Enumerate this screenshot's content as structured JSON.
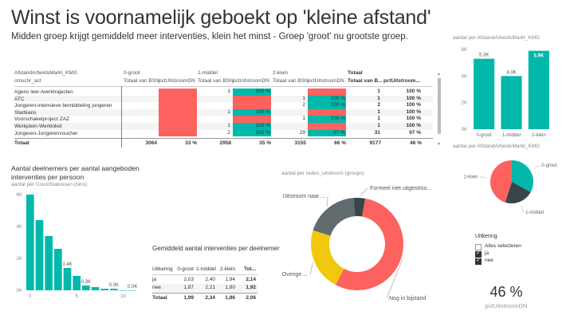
{
  "header": {
    "title": "Winst is voornamelijk geboekt op 'kleine afstand'",
    "subtitle": "Midden groep krijgt gemiddeld meer interventies, klein het minst - Groep 'groot' nu grootste groep."
  },
  "matrix": {
    "row_header_1": "AfstandArbeidsMarkt_KMG",
    "row_header_2": "omschr_act",
    "groups": [
      "0-groot",
      "1-middel",
      "2-klein",
      "Totaal"
    ],
    "col_labels": [
      "Totaal van BSN",
      "pctUitstroomDN",
      "Totaal van BSN",
      "pctUitstroomDN",
      "Totaal van BSN",
      "pctUitstroomDN",
      "Totaal van B...",
      "pctUitstroom..."
    ],
    "rows": [
      {
        "name": "Agens leer-/werktrajecten",
        "c": [
          "",
          "",
          "1",
          "100 %",
          "",
          "",
          "1",
          "100 %"
        ]
      },
      {
        "name": "ATC",
        "c": [
          "",
          "",
          "",
          "",
          "1",
          "100 %",
          "1",
          "100 %"
        ]
      },
      {
        "name": "Jongeren-intensieve bemiddeling jongeren",
        "c": [
          "",
          "",
          "",
          "",
          "2",
          "100 %",
          "2",
          "100 %"
        ]
      },
      {
        "name": "Startkans",
        "c": [
          "",
          "",
          "1",
          "100 %",
          "",
          "",
          "1",
          "100 %"
        ]
      },
      {
        "name": "Voorschakelproject ZAZ",
        "c": [
          "",
          "",
          "",
          "",
          "1",
          "100 %",
          "1",
          "100 %"
        ]
      },
      {
        "name": "Werkplein-Werkloket",
        "c": [
          "",
          "",
          "1",
          "100 %",
          "",
          "",
          "1",
          "100 %"
        ]
      },
      {
        "name": "Jongeren-Jongerenvoucher",
        "c": [
          "",
          "",
          "2",
          "100 %",
          "29",
          "97 %",
          "31",
          "97 %"
        ]
      }
    ],
    "total": {
      "name": "Totaal",
      "c": [
        "3064",
        "33 %",
        "2958",
        "35 %",
        "3155",
        "66 %",
        "9177",
        "46 %"
      ]
    }
  },
  "bar_chart": {
    "chart_data": {
      "type": "bar",
      "title": "aantal per AfstandArbeidsMarkt_KMG",
      "categories": [
        "0-groot",
        "1-middel",
        "2-klein"
      ],
      "values": [
        5.3,
        4.0,
        5.9
      ],
      "data_labels": [
        "5.3K",
        "4.0K",
        "5.9K"
      ],
      "y_ticks": [
        "0K",
        "2K",
        "4K",
        "6K"
      ],
      "ylim": [
        0,
        6
      ],
      "color": "#01B8AA"
    }
  },
  "pie_small": {
    "chart_data": {
      "type": "pie",
      "title": "aantal per AfstandArbeidsMarkt_KMG",
      "labels": [
        "0-groot",
        "1-middel",
        "2-klein"
      ],
      "values": [
        33,
        22,
        45
      ],
      "colors": [
        "#01B8AA",
        "#374649",
        "#FD625E"
      ]
    }
  },
  "histogram": {
    "title": "Aantal deelnemers per aantal aangeboden interventies per persoon",
    "chart_data": {
      "type": "bar",
      "title": "aantal per CountStatussen (bins)",
      "x": [
        0,
        1,
        2,
        3,
        4,
        5,
        6,
        7,
        8,
        9,
        10,
        11
      ],
      "values": [
        6.0,
        4.4,
        3.4,
        2.6,
        1.4,
        0.9,
        0.3,
        0.2,
        0.1,
        0.1,
        0.0,
        0.0
      ],
      "data_labels": [
        "",
        "",
        "",
        "",
        "1.4K",
        "",
        "0.3K",
        "",
        "",
        "0.0K",
        "",
        "0.0K"
      ],
      "y_ticks": [
        "0K",
        "2K",
        "4K",
        "6K"
      ],
      "x_ticks": [
        "0",
        "5",
        "10"
      ],
      "ylim": [
        0,
        6
      ],
      "color": "#01B8AA"
    }
  },
  "avg_table": {
    "title": "Gemiddeld aantal interventies per deelnemer",
    "headers": [
      "Uitkering",
      "0-groot",
      "1-middel",
      "2-klein",
      "Tot..."
    ],
    "rows": [
      [
        "ja",
        "2,03",
        "2,40",
        "1,94",
        "2,14"
      ],
      [
        "nee",
        "1,87",
        "2,21",
        "1,80",
        "1,92"
      ]
    ],
    "total": [
      "Totaal",
      "1,99",
      "2,34",
      "1,86",
      "2,06"
    ]
  },
  "donut": {
    "chart_data": {
      "type": "pie",
      "title": "aantal per reden_uitstroom (groups)",
      "labels": [
        "Nog in bijstand",
        "Overige ...",
        "Uitstroom naar ...",
        "Formeel niet uitgestroo..."
      ],
      "values": [
        55,
        22,
        19,
        4
      ],
      "colors": [
        "#FD625E",
        "#F2C80F",
        "#5F6B6D",
        "#374649"
      ]
    }
  },
  "slicer": {
    "title": "Uitkering",
    "items": [
      {
        "label": "Alles selecteren",
        "checked": false
      },
      {
        "label": "ja",
        "checked": true
      },
      {
        "label": "nee",
        "checked": true
      }
    ]
  },
  "kpi": {
    "value": "46 %",
    "label": "pctUitstroomDN"
  }
}
